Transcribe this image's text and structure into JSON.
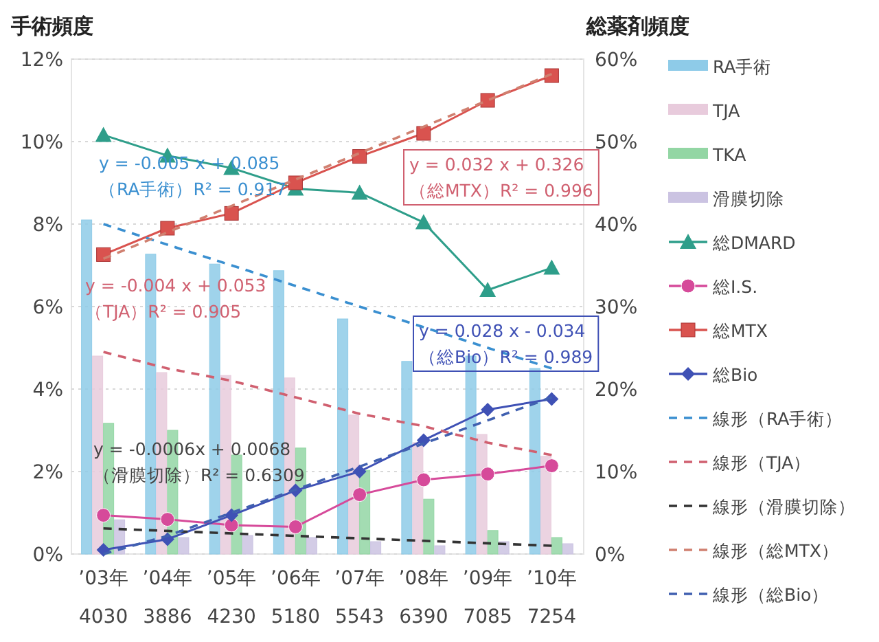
{
  "chart_data": {
    "type": "bar",
    "ylabel": "手術頻度",
    "y2label": "総薬剤頻度",
    "categories": [
      "’03年\n4030",
      "’04年\n3886",
      "’05年\n4230",
      "’06年\n5180",
      "’07年\n5543",
      "’08年\n6390",
      "’09年\n7085",
      "’10年\n7254"
    ],
    "ylim": [
      0,
      12
    ],
    "yticks": [
      {
        "value": 0,
        "label": "0%"
      },
      {
        "value": 2,
        "label": "2%"
      },
      {
        "value": 4,
        "label": "4%"
      },
      {
        "value": 6,
        "label": "6%"
      },
      {
        "value": 8,
        "label": "8%"
      },
      {
        "value": 10,
        "label": "10%"
      },
      {
        "value": 12,
        "label": "12%"
      }
    ],
    "y2lim": [
      0,
      60
    ],
    "y2ticks": [
      {
        "value": 0,
        "label": "0%"
      },
      {
        "value": 10,
        "label": "10%"
      },
      {
        "value": 20,
        "label": "20%"
      },
      {
        "value": 30,
        "label": "30%"
      },
      {
        "value": 40,
        "label": "40%"
      },
      {
        "value": 50,
        "label": "50%"
      },
      {
        "value": 60,
        "label": "60%"
      }
    ],
    "grid": "y",
    "legend": "right",
    "series": [
      {
        "name": "RA手術",
        "color": "#8ecbe8",
        "values": [
          8.1,
          7.27,
          7.03,
          6.87,
          5.7,
          4.67,
          4.8,
          4.5
        ]
      },
      {
        "name": "TJA",
        "color": "#e8cbdc",
        "values": [
          4.8,
          4.4,
          4.33,
          4.27,
          3.37,
          2.7,
          2.9,
          2.37
        ]
      },
      {
        "name": "TKA",
        "color": "#93d6a4",
        "values": [
          3.17,
          3.0,
          2.4,
          2.57,
          2.03,
          1.33,
          0.57,
          0.4
        ]
      },
      {
        "name": "滑膜切除",
        "color": "#cbc3e2",
        "values": [
          0.83,
          0.4,
          0.45,
          0.4,
          0.3,
          0.2,
          0.3,
          0.25
        ]
      },
      {
        "name": "総DMARD",
        "type": "line",
        "axis": "y2",
        "marker": "triangle",
        "color": "#2e9e8a",
        "values": [
          50.8,
          48.3,
          46.8,
          44.3,
          43.8,
          40.2,
          32,
          34.7
        ]
      },
      {
        "name": "総I.S.",
        "type": "line",
        "axis": "y2",
        "marker": "circle",
        "color": "#d64a9a",
        "values": [
          4.7,
          4.2,
          3.5,
          3.3,
          7.2,
          9.0,
          9.7,
          10.7
        ]
      },
      {
        "name": "総MTX",
        "type": "line",
        "axis": "y2",
        "marker": "square",
        "color": "#d9534f",
        "values": [
          36.3,
          39.5,
          41.3,
          45,
          48.2,
          51,
          55,
          58
        ]
      },
      {
        "name": "総Bio",
        "type": "line",
        "axis": "y2",
        "marker": "diamond",
        "color": "#3f51b5",
        "values": [
          0.5,
          1.8,
          4.7,
          7.7,
          10,
          13.8,
          17.5,
          18.8
        ]
      },
      {
        "name": "線形（RA手術）",
        "type": "line",
        "line_style": "dashed",
        "marker": "none",
        "color": "#3a8fd0",
        "values": [
          8.0,
          7.5,
          7.0,
          6.5,
          6.0,
          5.5,
          5.0,
          4.5
        ]
      },
      {
        "name": "線形（TJA）",
        "type": "line",
        "line_style": "dashed",
        "marker": "none",
        "color": "#d06070",
        "values": [
          4.9,
          4.5,
          4.2,
          3.8,
          3.4,
          3.1,
          2.7,
          2.4
        ]
      },
      {
        "name": "線形（滑膜切除）",
        "type": "line",
        "line_style": "dashed",
        "marker": "none",
        "color": "#333333",
        "values": [
          0.62,
          0.56,
          0.5,
          0.44,
          0.38,
          0.32,
          0.26,
          0.2
        ]
      },
      {
        "name": "線形（総MTX）",
        "type": "line",
        "axis": "y2",
        "line_style": "dashed",
        "marker": "none",
        "color": "#d08070",
        "values": [
          35.8,
          39,
          42.2,
          45.4,
          48.6,
          51.8,
          55,
          58.2
        ]
      },
      {
        "name": "線形（総Bio）",
        "type": "line",
        "axis": "y2",
        "line_style": "dashed",
        "marker": "none",
        "color": "#4060b0",
        "values": [
          0,
          2.2,
          5,
          7.8,
          10.6,
          13.4,
          16.2,
          19
        ]
      }
    ],
    "annotations": [
      "y = -0.005 x + 0.085\n（RA手術）R² = 0.917",
      "y = 0.032 x + 0.326\n（総MTX）R² = 0.996",
      "y = -0.004 x + 0.053\n（TJA）R² = 0.905",
      "y = 0.028 x - 0.034\n（総Bio）R² = 0.989",
      "y = -0.0006x + 0.0068\n（滑膜切除）R² = 0.6309"
    ]
  }
}
